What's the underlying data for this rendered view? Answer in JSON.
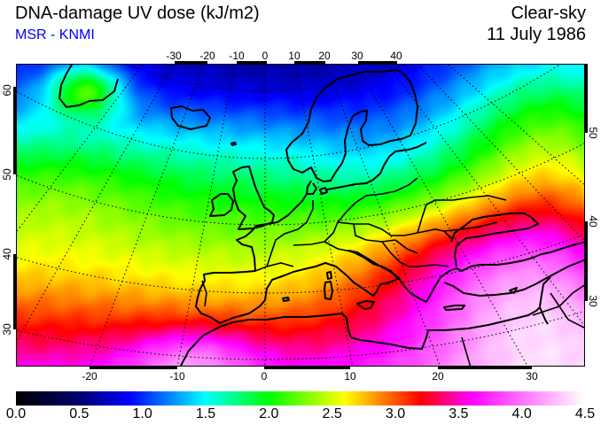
{
  "header": {
    "title": "DNA-damage UV dose (kJ/m2)",
    "source": "MSR - KNMI",
    "condition": "Clear-sky",
    "date": "11 July 1986"
  },
  "axes": {
    "top_longitudes": [
      "-30",
      "-20",
      "-10",
      "0",
      "10",
      "20",
      "30",
      "40"
    ],
    "bottom_longitudes": [
      "-20",
      "-10",
      "0",
      "10",
      "20",
      "30"
    ],
    "left_latitudes": [
      "60",
      "50",
      "40",
      "30"
    ],
    "right_latitudes": [
      "50",
      "40",
      "30"
    ]
  },
  "colorbar": {
    "unit": "kJ/m2",
    "range": [
      0.0,
      4.5
    ],
    "ticks": [
      "0.0",
      "0.5",
      "1.0",
      "1.5",
      "2.0",
      "2.5",
      "3.0",
      "3.5",
      "4.0",
      "4.5"
    ],
    "stops": [
      {
        "value": 0.0,
        "color": "#000000"
      },
      {
        "value": 0.5,
        "color": "#00006e"
      },
      {
        "value": 0.9,
        "color": "#0000ff"
      },
      {
        "value": 1.5,
        "color": "#00ffff"
      },
      {
        "value": 2.0,
        "color": "#00ff00"
      },
      {
        "value": 2.6,
        "color": "#ffff00"
      },
      {
        "value": 3.2,
        "color": "#ff0000"
      },
      {
        "value": 3.6,
        "color": "#ff00ff"
      },
      {
        "value": 4.5,
        "color": "#ffffff"
      }
    ]
  }
}
